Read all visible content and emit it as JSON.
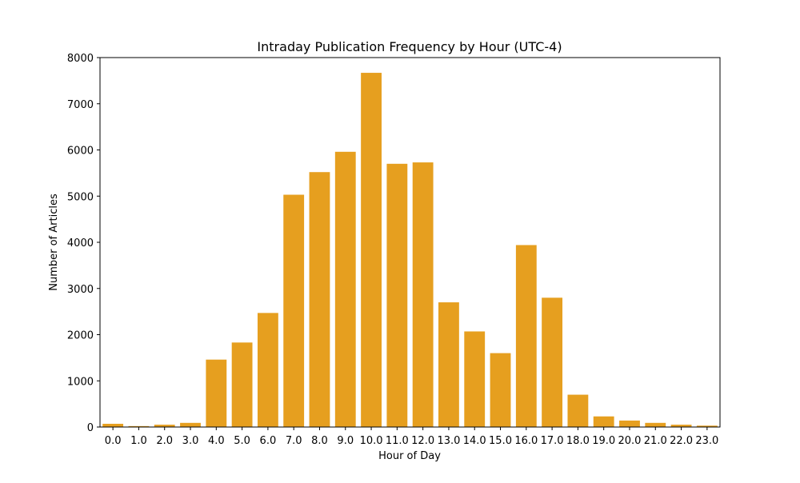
{
  "chart_data": {
    "type": "bar",
    "title": "Intraday Publication Frequency by Hour (UTC-4)",
    "xlabel": "Hour of Day",
    "ylabel": "Number of Articles",
    "categories": [
      "0.0",
      "1.0",
      "2.0",
      "3.0",
      "4.0",
      "5.0",
      "6.0",
      "7.0",
      "8.0",
      "9.0",
      "10.0",
      "11.0",
      "12.0",
      "13.0",
      "14.0",
      "15.0",
      "16.0",
      "17.0",
      "18.0",
      "19.0",
      "20.0",
      "21.0",
      "22.0",
      "23.0"
    ],
    "values": [
      70,
      20,
      50,
      90,
      1460,
      1830,
      2470,
      5030,
      5520,
      5960,
      7670,
      5700,
      5730,
      2700,
      2070,
      1600,
      3940,
      2800,
      700,
      230,
      140,
      90,
      50,
      30
    ],
    "ylim": [
      0,
      8000
    ],
    "yticks": [
      0,
      1000,
      2000,
      3000,
      4000,
      5000,
      6000,
      7000,
      8000
    ],
    "bar_color": "#e69f1f",
    "grid": false
  }
}
